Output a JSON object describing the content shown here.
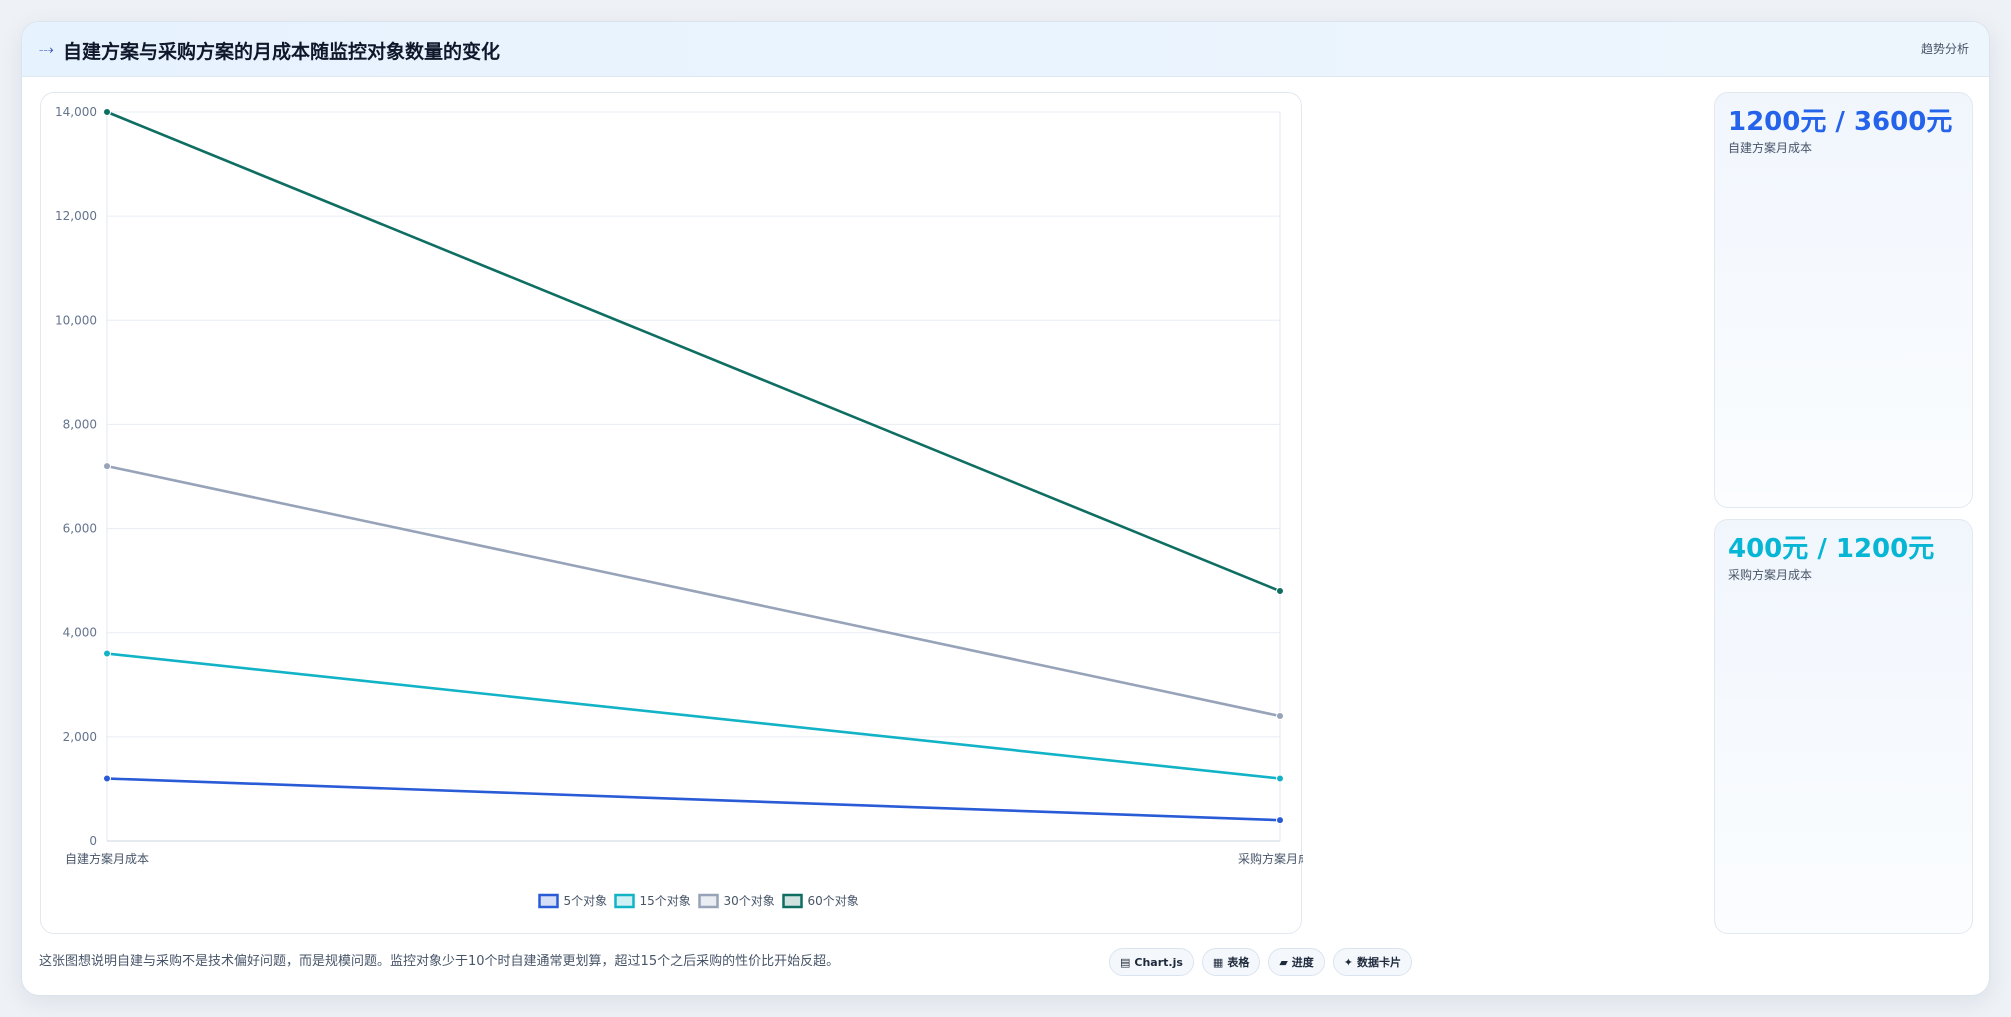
{
  "header": {
    "icon": "trend-line-icon",
    "title": "自建方案与采购方案的月成本随监控对象数量的变化",
    "tag": "趋势分析"
  },
  "chart_data": {
    "type": "line",
    "categories": [
      "自建方案月成本",
      "采购方案月成本"
    ],
    "series": [
      {
        "name": "5个对象",
        "values": [
          1200,
          400
        ],
        "color": "#2a5bd7"
      },
      {
        "name": "15个对象",
        "values": [
          3600,
          1200
        ],
        "color": "#12b3c7"
      },
      {
        "name": "30个对象",
        "values": [
          7200,
          2400
        ],
        "color": "#97a3b8"
      },
      {
        "name": "60个对象",
        "values": [
          14000,
          4800
        ],
        "color": "#0f6e62"
      }
    ],
    "ylim": [
      0,
      14000
    ],
    "yticks": [
      "0",
      "2,000",
      "4,000",
      "6,000",
      "8,000",
      "10,000",
      "12,000",
      "14,000"
    ],
    "ytick_values": [
      0,
      2000,
      4000,
      6000,
      8000,
      10000,
      12000,
      14000
    ],
    "grid": true,
    "legend_position": "bottom"
  },
  "stats": [
    {
      "value": "1200元 / 3600元",
      "label": "自建方案月成本"
    },
    {
      "value": "400元 / 1200元",
      "label": "采购方案月成本"
    }
  ],
  "footer": {
    "note": "这张图想说明自建与采购不是技术偏好问题，而是规模问题。监控对象少于10个时自建通常更划算，超过15个之后采购的性价比开始反超。",
    "pills": [
      {
        "icon": "chart-icon",
        "glyph": "▤",
        "label": "Chart.js"
      },
      {
        "icon": "table-icon",
        "glyph": "▦",
        "label": "表格"
      },
      {
        "icon": "progress-icon",
        "glyph": "▰",
        "label": "进度"
      },
      {
        "icon": "sparkle-icon",
        "glyph": "✦",
        "label": "数据卡片"
      }
    ]
  }
}
